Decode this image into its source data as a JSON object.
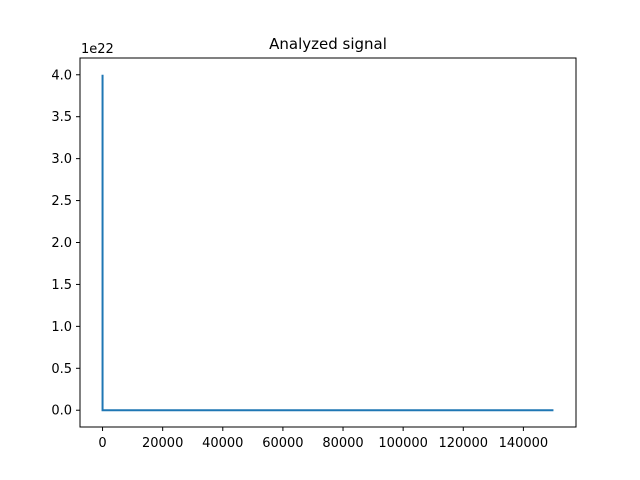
{
  "chart_data": {
    "type": "line",
    "title": "Analyzed signal",
    "xlabel": "",
    "ylabel": "",
    "y_offset_label": "1e22",
    "xlim": [
      -7500,
      157500
    ],
    "ylim": [
      -0.2,
      4.2
    ],
    "x_ticks": [
      0,
      20000,
      40000,
      60000,
      80000,
      100000,
      120000,
      140000
    ],
    "x_tick_labels": [
      "0",
      "20000",
      "40000",
      "60000",
      "80000",
      "100000",
      "120000",
      "140000"
    ],
    "y_ticks": [
      0.0,
      0.5,
      1.0,
      1.5,
      2.0,
      2.5,
      3.0,
      3.5,
      4.0
    ],
    "y_tick_labels": [
      "0.0",
      "0.5",
      "1.0",
      "1.5",
      "2.0",
      "2.5",
      "3.0",
      "3.5",
      "4.0"
    ],
    "grid": false,
    "series": [
      {
        "color": "#1f77b4",
        "x": [
          0,
          0,
          500,
          150000
        ],
        "y": [
          4.0,
          0.0,
          0.0,
          0.0
        ]
      }
    ]
  }
}
